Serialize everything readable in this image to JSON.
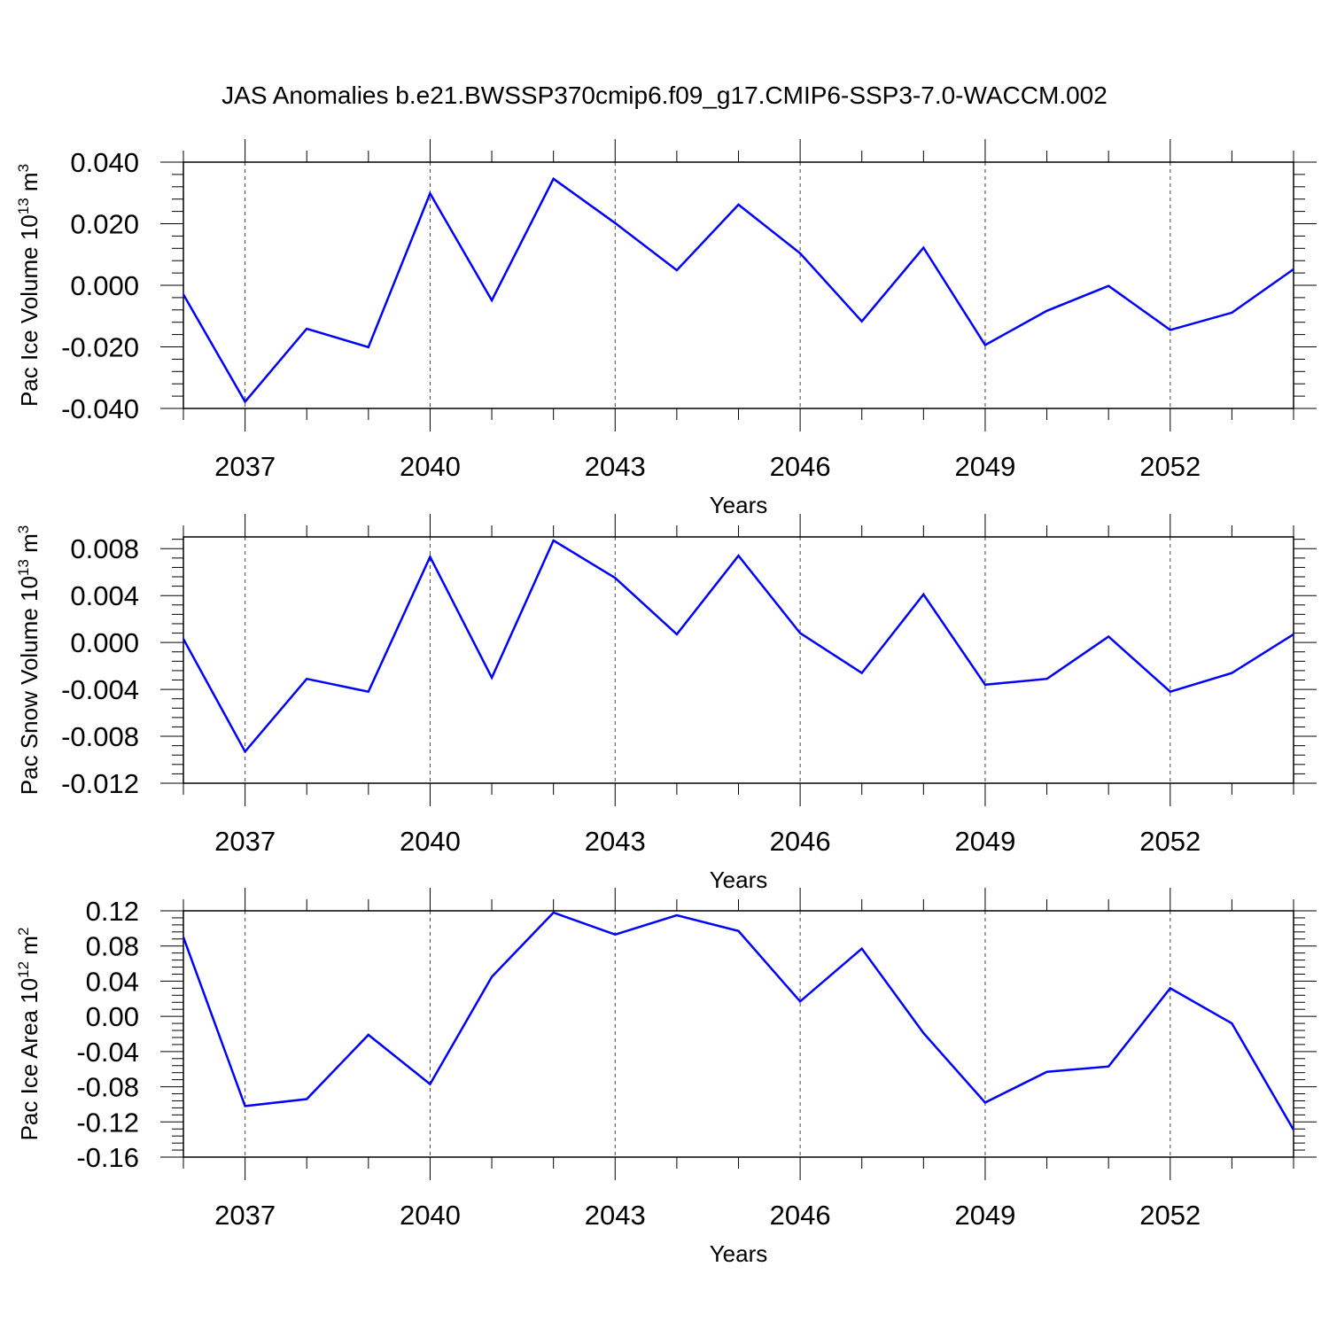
{
  "title": "JAS Anomalies b.e21.BWSSP370cmip6.f09_g17.CMIP6-SSP3-7.0-WACCM.002",
  "colors": {
    "line": "#0000ff",
    "axis": "#000000",
    "grid": "#444444"
  },
  "chart_data": [
    {
      "type": "line",
      "xlabel": "Years",
      "ylabel_main": "Pac Ice Volume 10",
      "ylabel_exp": "13",
      "ylabel_unit": " m",
      "ylabel_unit_exp": "3",
      "xlim": [
        2036,
        2054
      ],
      "ylim": [
        -0.04,
        0.04
      ],
      "x_ticks": [
        "2037",
        "2040",
        "2043",
        "2046",
        "2049",
        "2052"
      ],
      "y_ticks": [
        "-0.040",
        "-0.020",
        "0.000",
        "0.020",
        "0.040"
      ],
      "x": [
        2036,
        2037,
        2038,
        2039,
        2040,
        2041,
        2042,
        2043,
        2044,
        2045,
        2046,
        2047,
        2048,
        2049,
        2050,
        2051,
        2052,
        2053,
        2054
      ],
      "series": [
        {
          "values": [
            -0.003,
            -0.0378,
            -0.0141,
            -0.0201,
            0.0298,
            -0.0049,
            0.0346,
            0.0202,
            0.0049,
            0.0262,
            0.0104,
            -0.0117,
            0.0122,
            -0.0194,
            -0.0083,
            -0.0002,
            -0.0145,
            -0.0089,
            0.0052
          ]
        }
      ]
    },
    {
      "type": "line",
      "xlabel": "Years",
      "ylabel_main": "Pac Snow Volume 10",
      "ylabel_exp": "13",
      "ylabel_unit": " m",
      "ylabel_unit_exp": "3",
      "xlim": [
        2036,
        2054
      ],
      "ylim": [
        -0.012,
        0.009
      ],
      "x_ticks": [
        "2037",
        "2040",
        "2043",
        "2046",
        "2049",
        "2052"
      ],
      "y_ticks": [
        "-0.012",
        "-0.008",
        "-0.004",
        "0.000",
        "0.004",
        "0.008"
      ],
      "x": [
        2036,
        2037,
        2038,
        2039,
        2040,
        2041,
        2042,
        2043,
        2044,
        2045,
        2046,
        2047,
        2048,
        2049,
        2050,
        2051,
        2052,
        2053,
        2054
      ],
      "series": [
        {
          "values": [
            0.0003,
            -0.0093,
            -0.0031,
            -0.0042,
            0.0073,
            -0.003,
            0.0087,
            0.0055,
            0.0007,
            0.0074,
            0.0008,
            -0.0026,
            0.0041,
            -0.0036,
            -0.0031,
            0.0005,
            -0.0042,
            -0.0026,
            0.0007
          ]
        }
      ]
    },
    {
      "type": "line",
      "xlabel": "Years",
      "ylabel_main": "Pac Ice Area 10",
      "ylabel_exp": "12",
      "ylabel_unit": " m",
      "ylabel_unit_exp": "2",
      "xlim": [
        2036,
        2054
      ],
      "ylim": [
        -0.16,
        0.12
      ],
      "x_ticks": [
        "2037",
        "2040",
        "2043",
        "2046",
        "2049",
        "2052"
      ],
      "y_ticks": [
        "-0.16",
        "-0.12",
        "-0.08",
        "-0.04",
        "0.00",
        "0.04",
        "0.08",
        "0.12"
      ],
      "x": [
        2036,
        2037,
        2038,
        2039,
        2040,
        2041,
        2042,
        2043,
        2044,
        2045,
        2046,
        2047,
        2048,
        2049,
        2050,
        2051,
        2052,
        2053,
        2054
      ],
      "series": [
        {
          "values": [
            0.09,
            -0.102,
            -0.094,
            -0.021,
            -0.077,
            0.045,
            0.118,
            0.093,
            0.115,
            0.097,
            0.017,
            0.077,
            -0.019,
            -0.098,
            -0.063,
            -0.057,
            0.032,
            -0.008,
            -0.129
          ]
        }
      ]
    }
  ]
}
